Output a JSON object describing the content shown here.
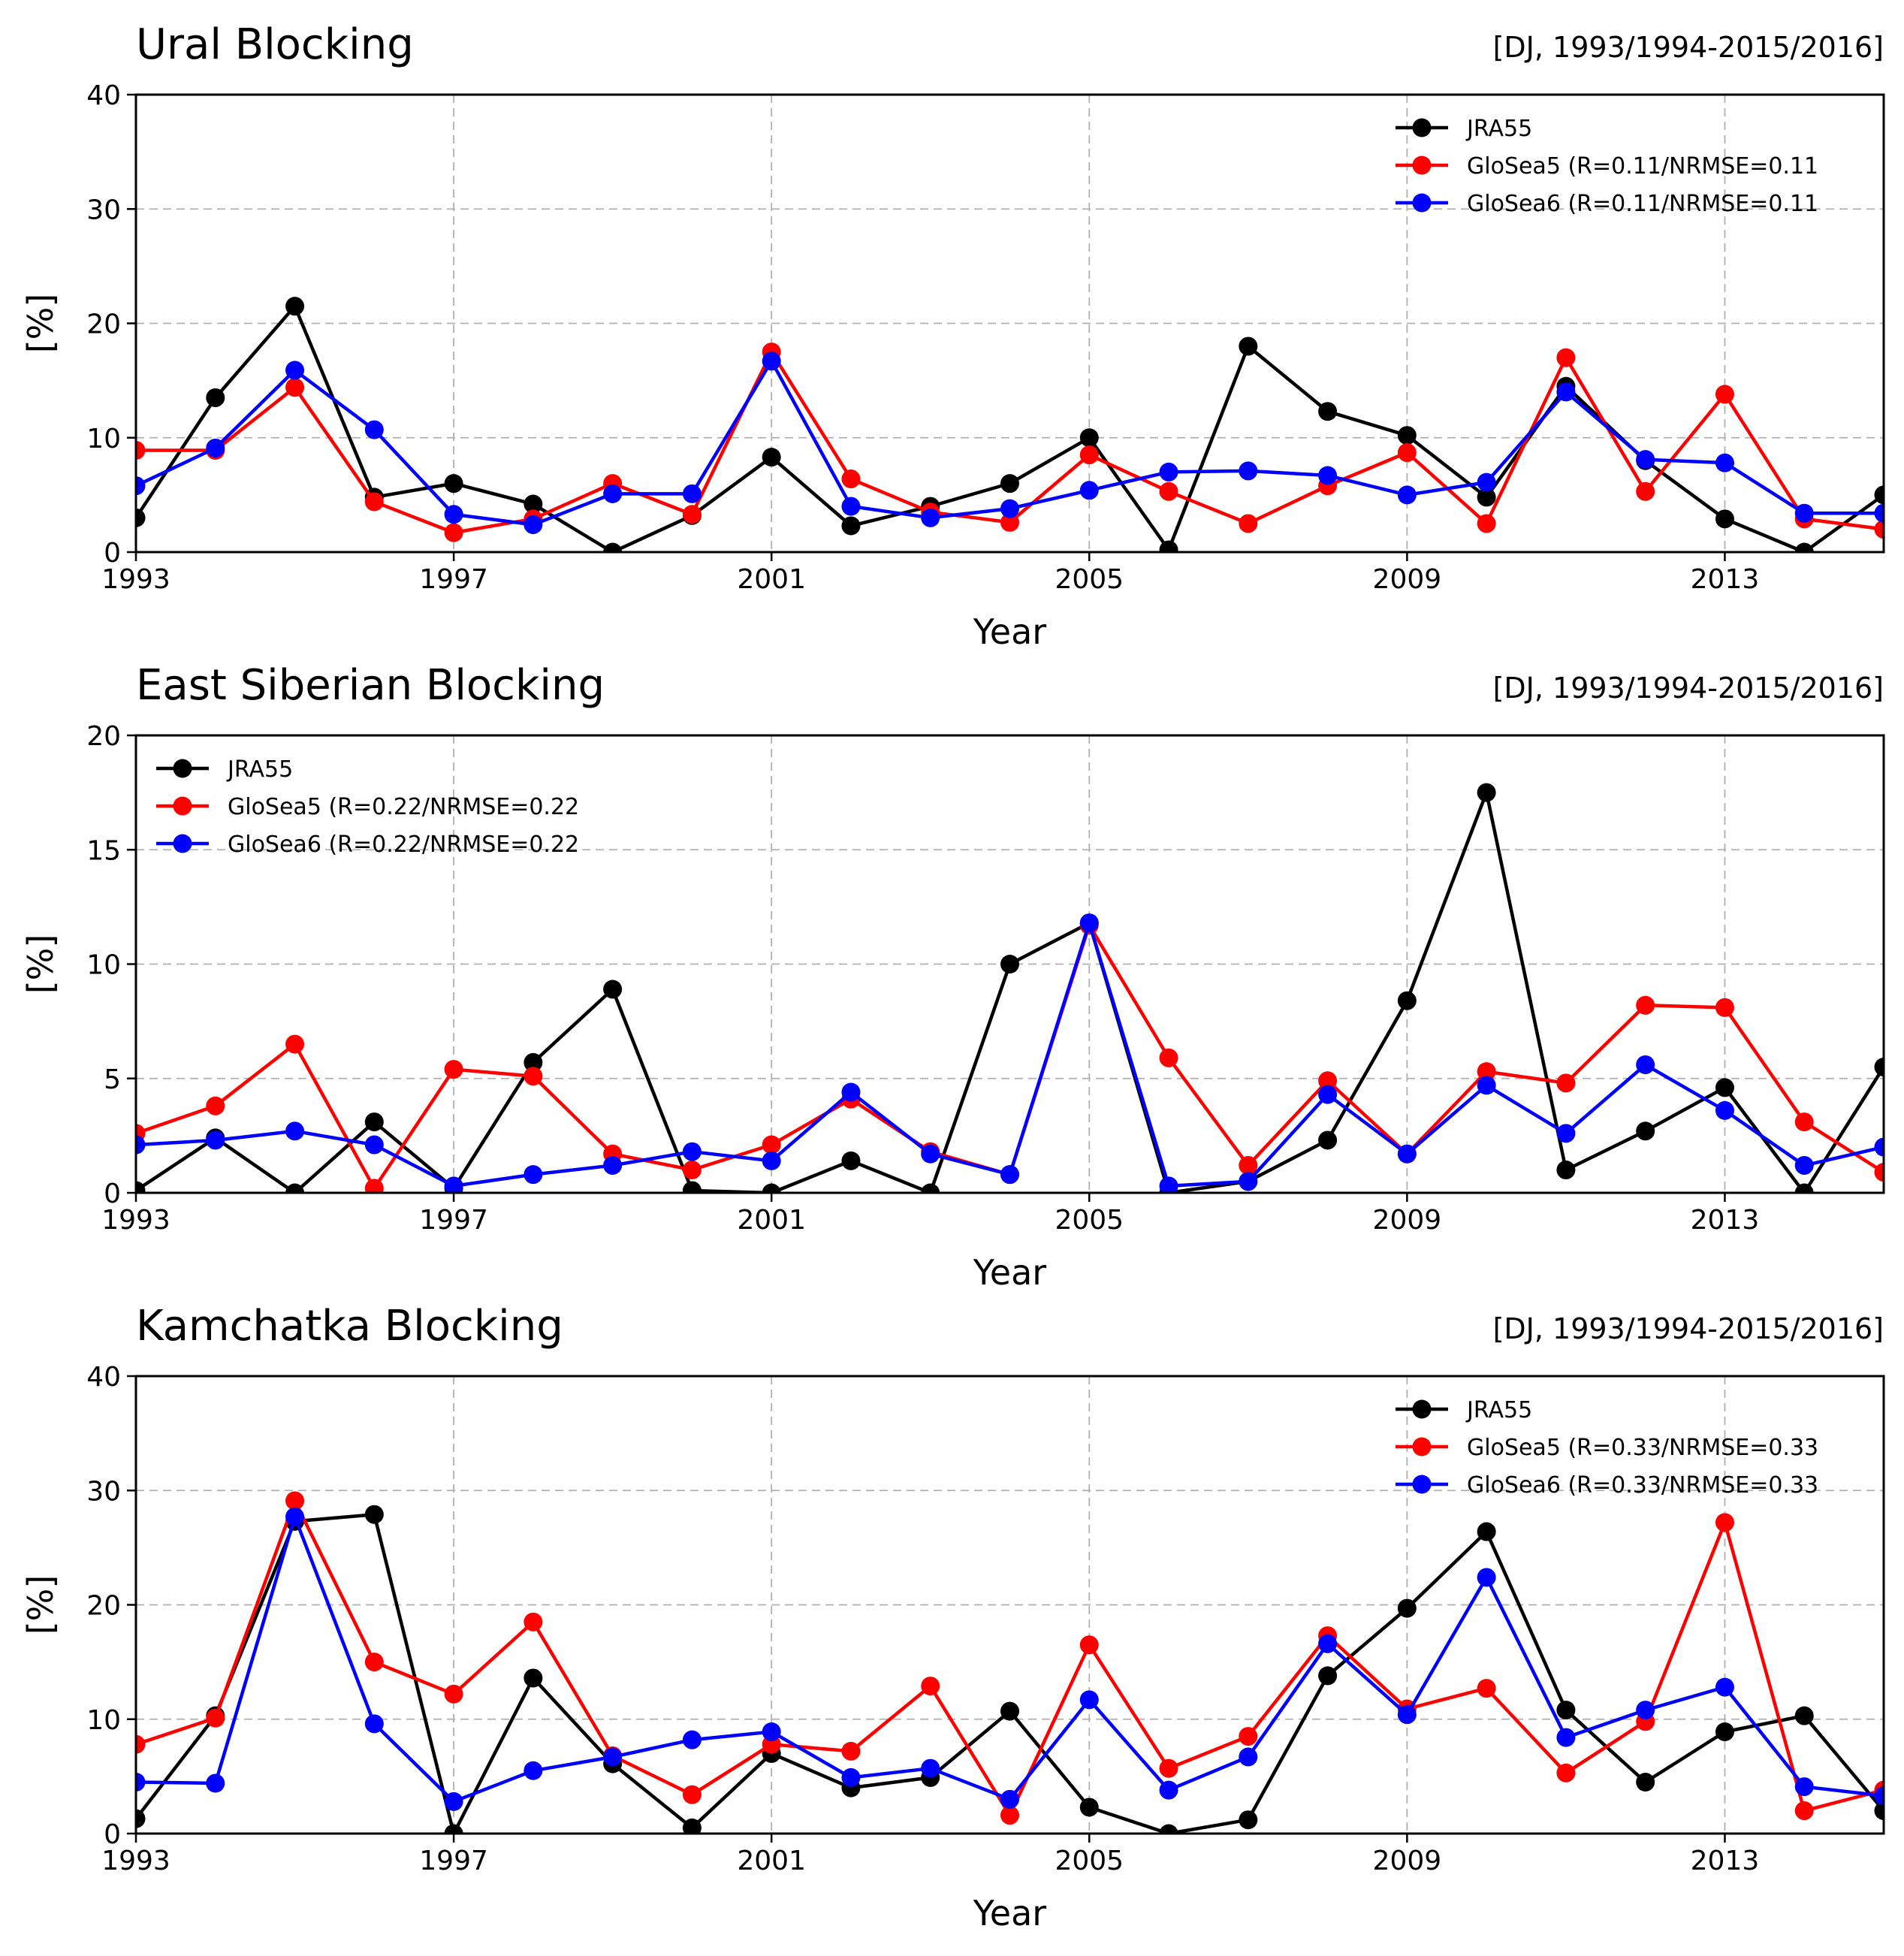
{
  "chart_data": [
    {
      "type": "line",
      "title": "Ural Blocking",
      "subtitle": "[DJ, 1993/1994-2015/2016]",
      "xlabel": "Year",
      "ylabel": "[%]",
      "xlim": [
        1993,
        2015
      ],
      "ylim": [
        0,
        40
      ],
      "x_ticks": [
        1993,
        1997,
        2001,
        2005,
        2009,
        2013
      ],
      "y_ticks": [
        0,
        10,
        20,
        30,
        40
      ],
      "grid": true,
      "legend_position": "top-right",
      "x": [
        1993,
        1994,
        1995,
        1996,
        1997,
        1998,
        1999,
        2000,
        2001,
        2002,
        2003,
        2004,
        2005,
        2006,
        2007,
        2008,
        2009,
        2010,
        2011,
        2012,
        2013,
        2014,
        2015
      ],
      "series": [
        {
          "name": "JRA55",
          "color": "#000000",
          "values": [
            3.0,
            13.5,
            21.5,
            4.8,
            6.0,
            4.2,
            0.0,
            3.2,
            8.3,
            2.3,
            4.0,
            6.0,
            10.0,
            0.2,
            18.0,
            12.3,
            10.2,
            4.8,
            14.5,
            8.0,
            2.9,
            0.0,
            5.0
          ]
        },
        {
          "name": "GloSea5 (R=0.11/NRMSE=0.11",
          "color": "#ff0000",
          "values": [
            8.9,
            8.9,
            14.4,
            4.4,
            1.7,
            2.9,
            6.0,
            3.3,
            17.5,
            6.4,
            3.5,
            2.6,
            8.5,
            5.3,
            2.5,
            5.8,
            8.7,
            2.5,
            17.0,
            5.3,
            13.8,
            2.9,
            2.0
          ]
        },
        {
          "name": "GloSea6 (R=0.11/NRMSE=0.11",
          "color": "#0000ff",
          "values": [
            5.8,
            9.1,
            15.9,
            10.7,
            3.3,
            2.4,
            5.1,
            5.1,
            16.7,
            4.0,
            3.0,
            3.8,
            5.4,
            7.0,
            7.1,
            6.7,
            5.0,
            6.1,
            14.0,
            8.1,
            7.8,
            3.4,
            3.4
          ]
        }
      ]
    },
    {
      "type": "line",
      "title": "East Siberian Blocking",
      "subtitle": "[DJ, 1993/1994-2015/2016]",
      "xlabel": "Year",
      "ylabel": "[%]",
      "xlim": [
        1993,
        2015
      ],
      "ylim": [
        0,
        20
      ],
      "x_ticks": [
        1993,
        1997,
        2001,
        2005,
        2009,
        2013
      ],
      "y_ticks": [
        0,
        5,
        10,
        15,
        20
      ],
      "grid": true,
      "legend_position": "top-left",
      "x": [
        1993,
        1994,
        1995,
        1996,
        1997,
        1998,
        1999,
        2000,
        2001,
        2002,
        2003,
        2004,
        2005,
        2006,
        2007,
        2008,
        2009,
        2010,
        2011,
        2012,
        2013,
        2014,
        2015
      ],
      "series": [
        {
          "name": "JRA55",
          "color": "#000000",
          "values": [
            0.1,
            2.4,
            0.0,
            3.1,
            0.2,
            5.7,
            8.9,
            0.1,
            0.0,
            1.4,
            0.0,
            10.0,
            11.8,
            0.0,
            0.5,
            2.3,
            8.4,
            17.5,
            1.0,
            2.7,
            4.6,
            0.0,
            5.5
          ]
        },
        {
          "name": "GloSea5 (R=0.22/NRMSE=0.22",
          "color": "#ff0000",
          "values": [
            2.6,
            3.8,
            6.5,
            0.2,
            5.4,
            5.1,
            1.7,
            1.0,
            2.1,
            4.1,
            1.8,
            0.8,
            11.7,
            5.9,
            1.2,
            4.9,
            1.7,
            5.3,
            4.8,
            8.2,
            8.1,
            3.1,
            0.9
          ]
        },
        {
          "name": "GloSea6 (R=0.22/NRMSE=0.22",
          "color": "#0000ff",
          "values": [
            2.1,
            2.3,
            2.7,
            2.1,
            0.3,
            0.8,
            1.2,
            1.8,
            1.4,
            4.4,
            1.7,
            0.8,
            11.8,
            0.3,
            0.5,
            4.3,
            1.7,
            4.7,
            2.6,
            5.6,
            3.6,
            1.2,
            2.0
          ]
        }
      ]
    },
    {
      "type": "line",
      "title": "Kamchatka Blocking",
      "subtitle": "[DJ, 1993/1994-2015/2016]",
      "xlabel": "Year",
      "ylabel": "[%]",
      "xlim": [
        1993,
        2015
      ],
      "ylim": [
        0,
        40
      ],
      "x_ticks": [
        1993,
        1997,
        2001,
        2005,
        2009,
        2013
      ],
      "y_ticks": [
        0,
        10,
        20,
        30,
        40
      ],
      "grid": true,
      "legend_position": "top-right",
      "x": [
        1993,
        1994,
        1995,
        1996,
        1997,
        1998,
        1999,
        2000,
        2001,
        2002,
        2003,
        2004,
        2005,
        2006,
        2007,
        2008,
        2009,
        2010,
        2011,
        2012,
        2013,
        2014,
        2015
      ],
      "series": [
        {
          "name": "JRA55",
          "color": "#000000",
          "values": [
            1.3,
            10.3,
            27.3,
            27.9,
            0.0,
            13.6,
            6.1,
            0.5,
            7.0,
            4.0,
            4.9,
            10.7,
            2.3,
            0.0,
            1.2,
            13.8,
            19.7,
            26.4,
            10.8,
            4.5,
            8.9,
            10.3,
            2.0
          ]
        },
        {
          "name": "GloSea5 (R=0.33/NRMSE=0.33",
          "color": "#ff0000",
          "values": [
            7.8,
            10.1,
            29.1,
            15.0,
            12.2,
            18.5,
            6.8,
            3.4,
            7.8,
            7.2,
            12.9,
            1.6,
            16.5,
            5.7,
            8.5,
            17.3,
            10.9,
            12.7,
            5.3,
            9.8,
            27.2,
            2.0,
            3.8
          ]
        },
        {
          "name": "GloSea6 (R=0.33/NRMSE=0.33",
          "color": "#0000ff",
          "values": [
            4.5,
            4.4,
            27.7,
            9.6,
            2.8,
            5.5,
            6.7,
            8.2,
            8.9,
            4.9,
            5.7,
            3.0,
            11.7,
            3.8,
            6.7,
            16.6,
            10.4,
            22.4,
            8.4,
            10.8,
            12.8,
            4.1,
            3.3
          ]
        }
      ]
    }
  ]
}
